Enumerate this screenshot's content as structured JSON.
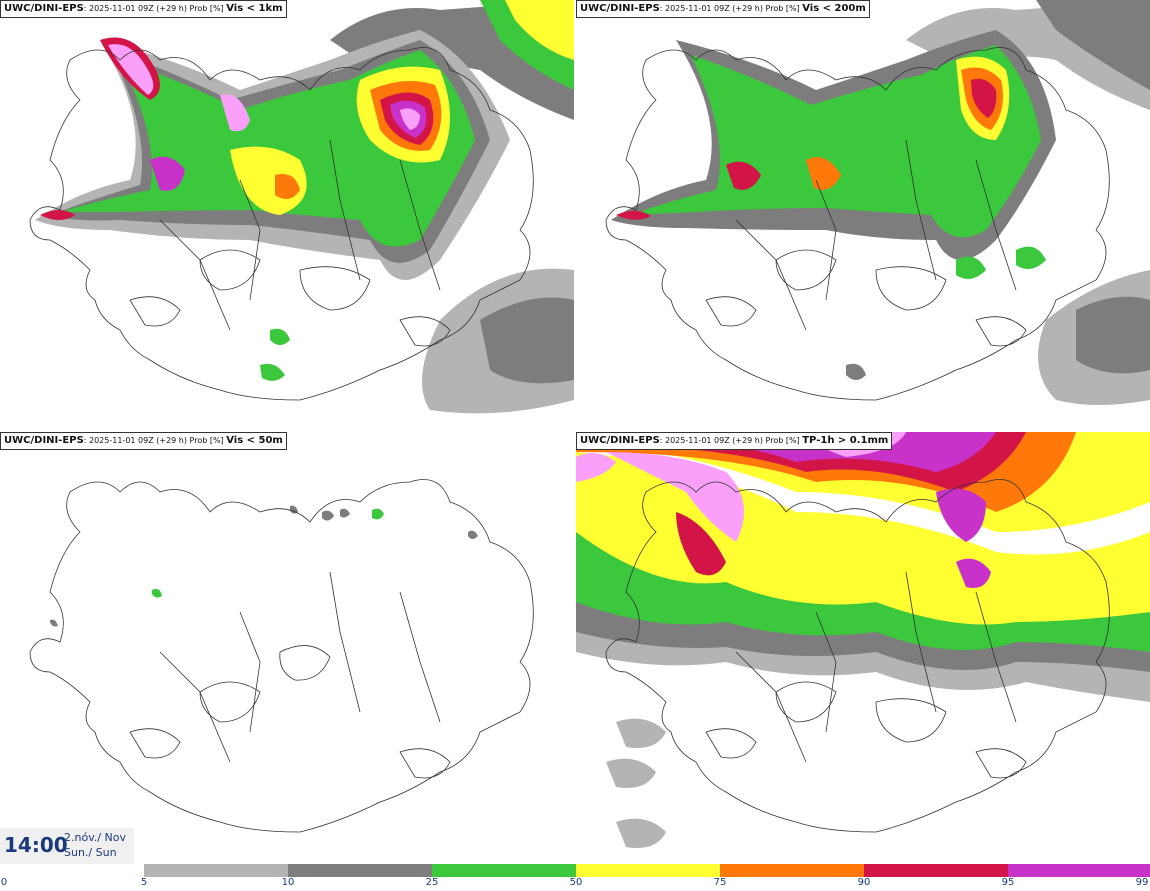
{
  "panels": [
    {
      "source": "UWC/DINI-EPS",
      "run": ": 2025-11-01 09Z (+29 h) Prob [%] ",
      "variable": "Vis < 1km"
    },
    {
      "source": "UWC/DINI-EPS",
      "run": ": 2025-11-01 09Z (+29 h) Prob [%] ",
      "variable": "Vis < 200m"
    },
    {
      "source": "UWC/DINI-EPS",
      "run": ": 2025-11-01 09Z (+29 h) Prob [%] ",
      "variable": "Vis < 50m"
    },
    {
      "source": "UWC/DINI-EPS",
      "run": ": 2025-11-01 09Z (+29 h) Prob [%] ",
      "variable": "TP-1h > 0.1mm"
    }
  ],
  "valid_time": {
    "time": "14:00",
    "date_line1": "2.nóv./ Nov",
    "date_line2": "Sun./ Sun"
  },
  "legend": {
    "ticks": [
      "0",
      "5",
      "10",
      "25",
      "50",
      "75",
      "90",
      "95",
      "99"
    ],
    "colors": [
      "#ffffff",
      "#b4b4b4",
      "#7d7d7d",
      "#3cc83c",
      "#ffff32",
      "#ff780a",
      "#d21446",
      "#c832c8",
      "#faa0fa"
    ]
  }
}
